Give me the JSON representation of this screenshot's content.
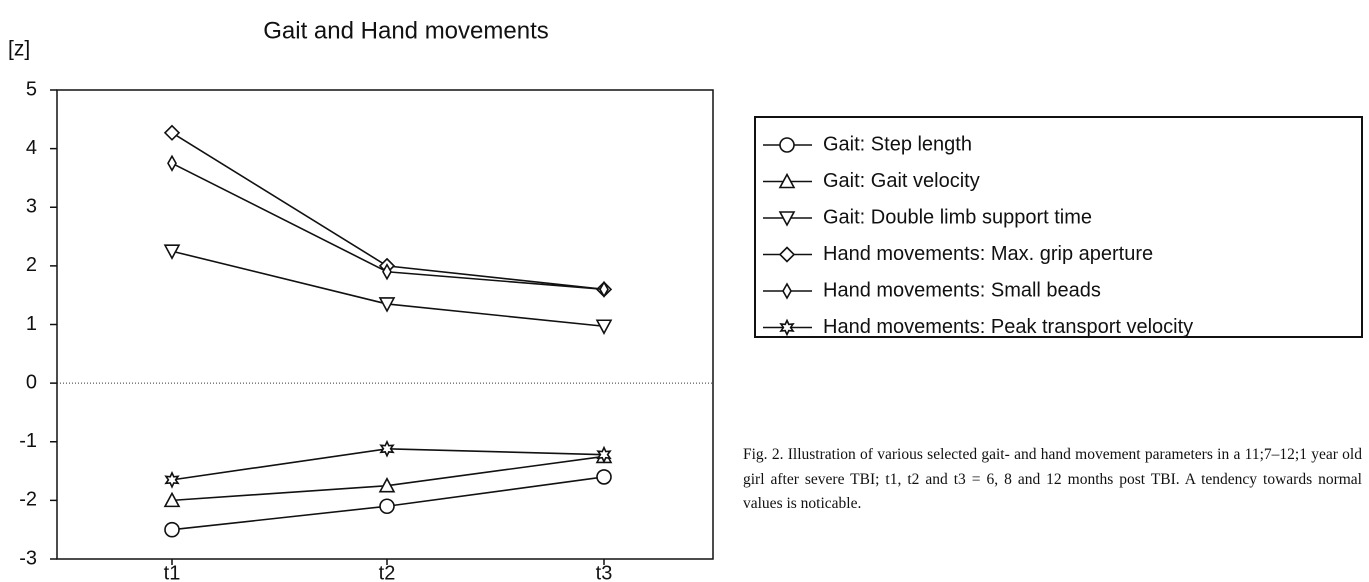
{
  "chart_data": {
    "type": "line",
    "title": "Gait and Hand movements",
    "ylabel": "[z]",
    "categories": [
      "t1",
      "t2",
      "t3"
    ],
    "series": [
      {
        "name": "Gait: Step length",
        "color": "#111111",
        "marker": "circle",
        "values": [
          -2.5,
          -2.1,
          -1.6
        ]
      },
      {
        "name": "Gait: Gait velocity",
        "color": "#111111",
        "marker": "triangle-up",
        "values": [
          -2.0,
          -1.75,
          -1.25
        ]
      },
      {
        "name": "Gait: Double limb support time",
        "color": "#111111",
        "marker": "triangle-down",
        "values": [
          2.25,
          1.35,
          0.97
        ]
      },
      {
        "name": "Hand movements: Max. grip aperture",
        "color": "#111111",
        "marker": "diamond",
        "values": [
          4.27,
          2.0,
          1.6
        ]
      },
      {
        "name": "Hand movements: Small beads",
        "color": "#111111",
        "marker": "thin-diamond",
        "values": [
          3.75,
          1.9,
          1.6
        ]
      },
      {
        "name": "Hand movements: Peak transport velocity",
        "color": "#111111",
        "marker": "star",
        "values": [
          -1.65,
          -1.12,
          -1.22
        ]
      }
    ],
    "ylim": [
      -3,
      5
    ],
    "yticks": [
      -3,
      -2,
      -1,
      0,
      1,
      2,
      3,
      4,
      5
    ],
    "zero_line": 0,
    "legend": "right",
    "caption": "Fig. 2. Illustration of various selected gait- and hand movement parameters in a 11;7–12;1 year old girl after severe TBI; t1, t2 and t3 = 6, 8 and 12 months post TBI. A tendency towards normal values is noticable."
  }
}
